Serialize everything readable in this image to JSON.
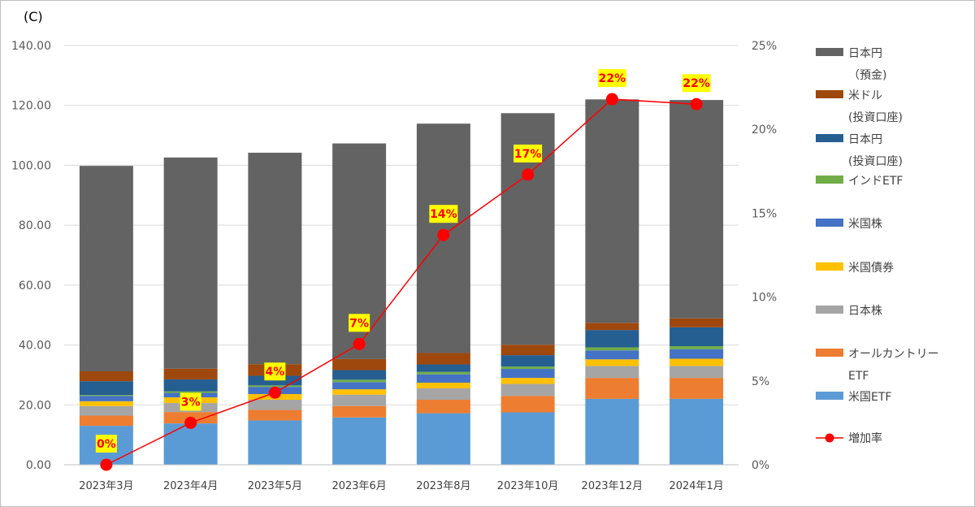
{
  "chart_data": {
    "type": "bar",
    "stacked": true,
    "unit_label": "(C)",
    "categories": [
      "2023年3月",
      "2023年4月",
      "2023年5月",
      "2023年6月",
      "2023年8月",
      "2023年10月",
      "2023年12月",
      "2024年1月"
    ],
    "ylim": [
      0,
      140
    ],
    "yticks": [
      "0.00",
      "20.00",
      "40.00",
      "60.00",
      "80.00",
      "100.00",
      "120.00",
      "140.00"
    ],
    "y2lim": [
      0,
      25
    ],
    "y2ticks": [
      "0%",
      "5%",
      "10%",
      "15%",
      "20%",
      "25%"
    ],
    "grid": true,
    "legend_position": "right",
    "series": [
      {
        "name": "米国ETF",
        "color": "#5b9bd5",
        "values": [
          13.0,
          13.8,
          14.8,
          15.8,
          17.2,
          17.5,
          22.0,
          22.0
        ]
      },
      {
        "name": "オールカントリーETF",
        "color": "#ed7d31",
        "values": [
          3.4,
          3.8,
          3.5,
          3.8,
          4.5,
          5.5,
          7.0,
          7.0
        ]
      },
      {
        "name": "日本株",
        "color": "#a5a5a5",
        "values": [
          3.2,
          3.0,
          3.4,
          3.8,
          3.8,
          4.0,
          4.0,
          4.0
        ]
      },
      {
        "name": "米国債券",
        "color": "#ffc000",
        "values": [
          1.6,
          1.9,
          1.9,
          1.8,
          1.9,
          2.0,
          2.2,
          2.4
        ]
      },
      {
        "name": "米国株",
        "color": "#4472c4",
        "values": [
          1.8,
          1.5,
          2.4,
          2.4,
          2.8,
          3.0,
          3.0,
          3.2
        ]
      },
      {
        "name": "インドETF",
        "color": "#70ad47",
        "values": [
          0.3,
          0.5,
          0.5,
          0.8,
          0.8,
          0.8,
          1.0,
          1.0
        ]
      },
      {
        "name": "日本円 (投資口座)",
        "color": "#255e91",
        "values": [
          4.6,
          4.0,
          3.2,
          3.2,
          2.5,
          3.8,
          5.8,
          6.3
        ]
      },
      {
        "name": "米ドル (投資口座)",
        "color": "#9e480e",
        "values": [
          3.3,
          3.6,
          3.9,
          3.7,
          3.8,
          3.5,
          2.4,
          3.0
        ]
      },
      {
        "name": "日本円 （預金)",
        "color": "#636363",
        "values": [
          68.6,
          70.5,
          70.6,
          72.0,
          76.6,
          77.3,
          74.6,
          72.9
        ]
      }
    ],
    "line_series": {
      "name": "増加率",
      "color": "#ff0000",
      "values": [
        0,
        2.5,
        4.3,
        7.2,
        13.7,
        17.3,
        21.8,
        21.5
      ],
      "labels": [
        "0%",
        "3%",
        "4%",
        "7%",
        "14%",
        "17%",
        "22%",
        "22%"
      ],
      "label_bg": "#ffff00"
    },
    "legend": [
      {
        "lines": [
          "日本円",
          "（預金)"
        ],
        "kind": "bar",
        "color": "#636363"
      },
      {
        "lines": [
          "米ドル",
          "(投資口座)"
        ],
        "kind": "bar",
        "color": "#9e480e"
      },
      {
        "lines": [
          "日本円",
          "(投資口座)"
        ],
        "kind": "bar",
        "color": "#255e91"
      },
      {
        "lines": [
          "インドETF"
        ],
        "kind": "bar",
        "color": "#70ad47"
      },
      {
        "lines": [
          "米国株"
        ],
        "kind": "bar",
        "color": "#4472c4"
      },
      {
        "lines": [
          "米国債券"
        ],
        "kind": "bar",
        "color": "#ffc000"
      },
      {
        "lines": [
          "日本株"
        ],
        "kind": "bar",
        "color": "#a5a5a5"
      },
      {
        "lines": [
          "オールカントリー",
          "ETF"
        ],
        "kind": "bar",
        "color": "#ed7d31"
      },
      {
        "lines": [
          "米国ETF"
        ],
        "kind": "bar",
        "color": "#5b9bd5"
      },
      {
        "lines": [
          "増加率"
        ],
        "kind": "line",
        "color": "#ff0000"
      }
    ]
  }
}
